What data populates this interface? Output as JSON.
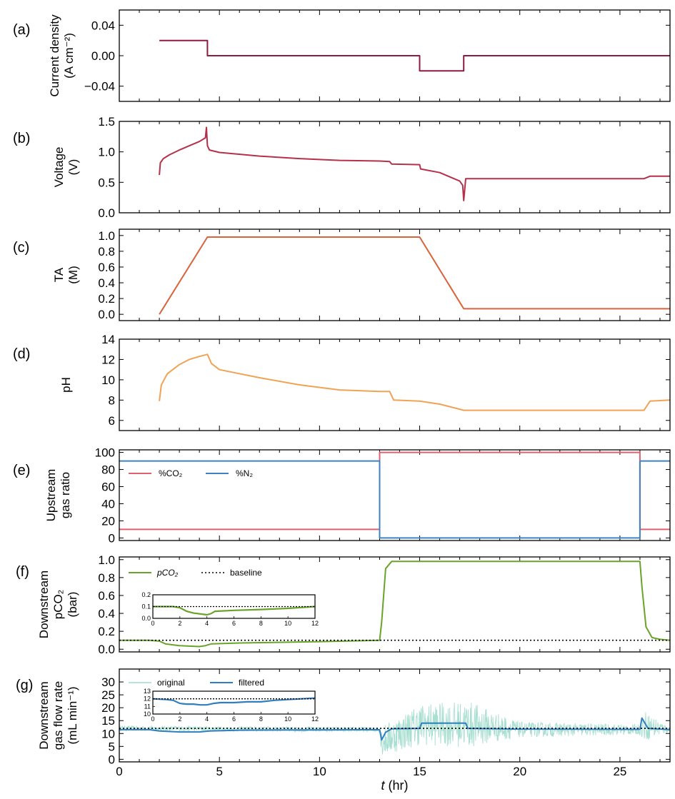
{
  "figure": {
    "xlabel_var": "t",
    "xlabel_unit": " (hr)",
    "x_ticks": [
      0,
      5,
      10,
      15,
      20,
      25
    ],
    "xlim": [
      0,
      27.5
    ]
  },
  "chart_data": [
    {
      "type": "line",
      "panel": "(a)",
      "ylabel": [
        "Current density",
        "(A cm⁻²)"
      ],
      "ylim": [
        -0.06,
        0.06
      ],
      "y_ticks": [
        -0.04,
        0.0,
        0.04
      ],
      "y_tick_labels": [
        "−0.04",
        "0.00",
        "0.04"
      ],
      "series": [
        {
          "name": "Current density",
          "color": "#8c1d40",
          "x": [
            2.0,
            4.4,
            4.4,
            15.0,
            15.0,
            17.2,
            17.2,
            27.5
          ],
          "y": [
            0.02,
            0.02,
            0.0,
            0.0,
            -0.02,
            -0.02,
            0.0,
            0.0
          ]
        }
      ]
    },
    {
      "type": "line",
      "panel": "(b)",
      "ylabel": [
        "Voltage",
        "(V)"
      ],
      "ylim": [
        0,
        1.5
      ],
      "y_ticks": [
        0.0,
        0.5,
        1.0,
        1.5
      ],
      "y_tick_labels": [
        "0.0",
        "0.5",
        "1.0",
        "1.5"
      ],
      "series": [
        {
          "name": "Voltage",
          "color": "#b5314a",
          "x": [
            2.0,
            2.05,
            2.2,
            2.5,
            3.0,
            3.5,
            4.0,
            4.3,
            4.35,
            4.4,
            4.5,
            5.0,
            7.0,
            9.0,
            11.0,
            13.0,
            13.5,
            13.6,
            15.0,
            15.05,
            16.0,
            17.0,
            17.15,
            17.2,
            17.3,
            20.0,
            25.0,
            26.2,
            26.5,
            27.5
          ],
          "y": [
            0.62,
            0.82,
            0.89,
            0.95,
            1.03,
            1.1,
            1.17,
            1.23,
            1.4,
            1.1,
            1.03,
            0.99,
            0.93,
            0.89,
            0.86,
            0.85,
            0.84,
            0.8,
            0.79,
            0.72,
            0.66,
            0.52,
            0.45,
            0.2,
            0.56,
            0.56,
            0.56,
            0.56,
            0.6,
            0.6
          ]
        }
      ]
    },
    {
      "type": "line",
      "panel": "(c)",
      "ylabel": [
        "TA",
        "(M)"
      ],
      "ylim": [
        -0.08,
        1.08
      ],
      "y_ticks": [
        0.0,
        0.2,
        0.4,
        0.6,
        0.8,
        1.0
      ],
      "y_tick_labels": [
        "0.0",
        "0.2",
        "0.4",
        "0.6",
        "0.8",
        "1.0"
      ],
      "series": [
        {
          "name": "TA",
          "color": "#d9633a",
          "x": [
            2.0,
            4.4,
            15.0,
            17.2,
            27.5
          ],
          "y": [
            0.0,
            0.98,
            0.98,
            0.07,
            0.07
          ]
        }
      ]
    },
    {
      "type": "line",
      "panel": "(d)",
      "ylabel": [
        "pH"
      ],
      "ylim": [
        5,
        14
      ],
      "y_ticks": [
        6,
        8,
        10,
        12,
        14
      ],
      "y_tick_labels": [
        "6",
        "8",
        "10",
        "12",
        "14"
      ],
      "series": [
        {
          "name": "pH",
          "color": "#f0a355",
          "x": [
            2.0,
            2.1,
            2.4,
            3.0,
            3.5,
            4.0,
            4.4,
            4.6,
            5.0,
            7.0,
            9.0,
            11.0,
            13.0,
            13.5,
            13.7,
            15.0,
            16.0,
            17.0,
            17.2,
            20.0,
            26.0,
            26.2,
            26.5,
            27.5
          ],
          "y": [
            7.9,
            9.5,
            10.6,
            11.5,
            12.0,
            12.3,
            12.5,
            11.6,
            11.0,
            10.2,
            9.5,
            9.0,
            8.85,
            8.85,
            8.0,
            7.9,
            7.6,
            7.1,
            7.0,
            7.0,
            7.0,
            7.0,
            7.9,
            8.0
          ]
        }
      ]
    },
    {
      "type": "line",
      "panel": "(e)",
      "ylabel": [
        "Upstream",
        "gas ratio"
      ],
      "ylim": [
        -3,
        103
      ],
      "y_ticks": [
        0,
        20,
        40,
        60,
        80,
        100
      ],
      "y_tick_labels": [
        "0",
        "20",
        "40",
        "60",
        "80",
        "100"
      ],
      "legend": "center-left",
      "series": [
        {
          "name": "%CO₂",
          "color": "#e06070",
          "x": [
            0,
            13.0,
            13.0,
            26.0,
            26.0,
            27.5
          ],
          "y": [
            10,
            10,
            100,
            100,
            10,
            10
          ]
        },
        {
          "name": "%N₂",
          "color": "#3f82c0",
          "x": [
            0,
            13.0,
            13.0,
            26.0,
            26.0,
            27.5
          ],
          "y": [
            90,
            90,
            0,
            0,
            90,
            90
          ]
        }
      ]
    },
    {
      "type": "line",
      "panel": "(f)",
      "ylabel": [
        "Downstream",
        "pCO₂",
        "(bar)"
      ],
      "ylim": [
        -0.03,
        1.03
      ],
      "y_ticks": [
        0.0,
        0.2,
        0.4,
        0.6,
        0.8,
        1.0
      ],
      "y_tick_labels": [
        "0.0",
        "0.2",
        "0.4",
        "0.6",
        "0.8",
        "1.0"
      ],
      "legend": "top-left",
      "series": [
        {
          "name": "pCO₂",
          "color": "#6aa32a",
          "x": [
            0,
            1.5,
            2.0,
            2.3,
            3.0,
            4.0,
            4.3,
            4.6,
            6.0,
            10.0,
            13.0,
            13.1,
            13.3,
            13.6,
            26.0,
            26.1,
            26.3,
            26.6,
            27.0,
            27.5
          ],
          "y": [
            0.1,
            0.1,
            0.09,
            0.06,
            0.04,
            0.03,
            0.04,
            0.06,
            0.07,
            0.085,
            0.1,
            0.3,
            0.9,
            0.98,
            0.98,
            0.7,
            0.25,
            0.13,
            0.11,
            0.1
          ]
        },
        {
          "name": "baseline",
          "color": "#000000",
          "dashed": true,
          "x": [
            0,
            27.5
          ],
          "y": [
            0.1,
            0.1
          ]
        }
      ],
      "inset": {
        "xlim": [
          0,
          12
        ],
        "ylim": [
          0,
          0.2
        ],
        "x_ticks": [
          0,
          2,
          4,
          6,
          8,
          10,
          12
        ],
        "y_ticks": [
          0.0,
          0.1,
          0.2
        ],
        "y_tick_labels": [
          "0.0",
          "0.1",
          "0.2"
        ],
        "series": [
          {
            "name": "pCO₂",
            "color": "#6aa32a",
            "x": [
              0,
              1.5,
              2.0,
              2.5,
              3.0,
              4.0,
              4.3,
              4.6,
              6.0,
              8.0,
              10.0,
              12.0
            ],
            "y": [
              0.1,
              0.1,
              0.09,
              0.06,
              0.045,
              0.03,
              0.04,
              0.06,
              0.068,
              0.075,
              0.085,
              0.1
            ]
          },
          {
            "name": "baseline",
            "color": "#000000",
            "dashed": true,
            "x": [
              0,
              12
            ],
            "y": [
              0.1,
              0.1
            ]
          }
        ]
      }
    },
    {
      "type": "line",
      "panel": "(g)",
      "ylabel": [
        "Downstream",
        "gas flow rate",
        "(mL min⁻¹)"
      ],
      "ylim": [
        -1,
        35
      ],
      "y_ticks": [
        0,
        5,
        10,
        15,
        20,
        25,
        30
      ],
      "y_tick_labels": [
        "0",
        "5",
        "10",
        "15",
        "20",
        "25",
        "30"
      ],
      "legend": "top-left",
      "series": [
        {
          "name": "original",
          "color": "#9fdccb",
          "noisy": true,
          "x": [
            0,
            13.0,
            13.1,
            15.0,
            17.5,
            20.0,
            26.0,
            26.2,
            27.5
          ],
          "y": [
            12,
            11.5,
            7,
            13.5,
            13.5,
            11.5,
            11.5,
            13,
            11.5
          ],
          "amplitude": [
            1.0,
            1.0,
            6,
            8,
            9,
            3,
            2,
            6,
            1
          ]
        },
        {
          "name": "filtered",
          "color": "#2f7fc0",
          "x": [
            0,
            1.5,
            2.0,
            3.0,
            4.0,
            4.5,
            6.0,
            10.0,
            13.0,
            13.1,
            13.3,
            13.6,
            15.0,
            15.1,
            17.3,
            17.4,
            20.0,
            26.0,
            26.1,
            26.4,
            27.5
          ],
          "y": [
            11.5,
            11.5,
            11.0,
            10.6,
            10.6,
            11.0,
            11.3,
            11.4,
            11.5,
            7.5,
            10.5,
            11.8,
            12.0,
            14.0,
            14.0,
            12.0,
            11.7,
            11.6,
            16.0,
            12.0,
            11.5
          ]
        },
        {
          "name": "baseline",
          "color": "#000000",
          "dashed": true,
          "x": [
            0,
            27.5
          ],
          "y": [
            12,
            12
          ]
        }
      ],
      "inset": {
        "xlim": [
          0,
          12
        ],
        "ylim": [
          10,
          13
        ],
        "x_ticks": [
          0,
          2,
          4,
          6,
          8,
          10,
          12
        ],
        "y_ticks": [
          10,
          11,
          12,
          13
        ],
        "y_tick_labels": [
          "10",
          "11",
          "12",
          "13"
        ],
        "series": [
          {
            "name": "filtered",
            "color": "#2f7fc0",
            "x": [
              0,
              1.0,
              1.5,
              2.0,
              2.5,
              3.0,
              3.5,
              4.0,
              4.5,
              5.0,
              6.0,
              7.0,
              8.0,
              9.0,
              10.0,
              11.0,
              12.0
            ],
            "y": [
              12.0,
              11.9,
              11.8,
              11.4,
              11.3,
              11.3,
              11.2,
              11.2,
              11.4,
              11.5,
              11.5,
              11.6,
              11.6,
              11.8,
              11.9,
              12.0,
              12.1
            ]
          },
          {
            "name": "baseline",
            "color": "#000000",
            "dashed": true,
            "x": [
              0,
              12
            ],
            "y": [
              12,
              12
            ]
          }
        ]
      }
    }
  ]
}
